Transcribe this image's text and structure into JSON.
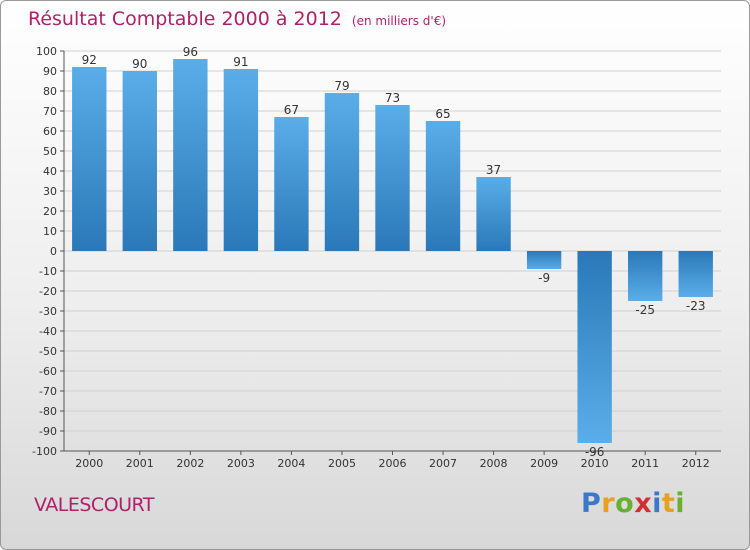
{
  "header": {
    "title": "Résultat Comptable 2000 à 2012",
    "subtitle": "(en milliers d'€)"
  },
  "footer": {
    "place": "VALESCOURT",
    "logo_letters": [
      "P",
      "r",
      "o",
      "x",
      "i",
      "t",
      "i"
    ],
    "logo_colors": [
      "#3c78c8",
      "#e8a020",
      "#6ab030",
      "#d03030",
      "#3c78c8",
      "#e8a020",
      "#6ab030"
    ]
  },
  "chart_data": {
    "type": "bar",
    "title": "Résultat Comptable 2000 à 2012",
    "subtitle": "(en milliers d'€)",
    "categories": [
      "2000",
      "2001",
      "2002",
      "2003",
      "2004",
      "2005",
      "2006",
      "2007",
      "2008",
      "2009",
      "2010",
      "2011",
      "2012"
    ],
    "values": [
      92,
      90,
      96,
      91,
      67,
      79,
      73,
      65,
      37,
      -9,
      -96,
      -25,
      -23
    ],
    "ylim": [
      -100,
      100
    ],
    "ytick_step": 10,
    "grid": true,
    "xlabel": "",
    "ylabel": "",
    "bar_color_light": "#5aaee8",
    "bar_color_dark": "#2a78b8",
    "grid_color": "#d0d0d0"
  }
}
